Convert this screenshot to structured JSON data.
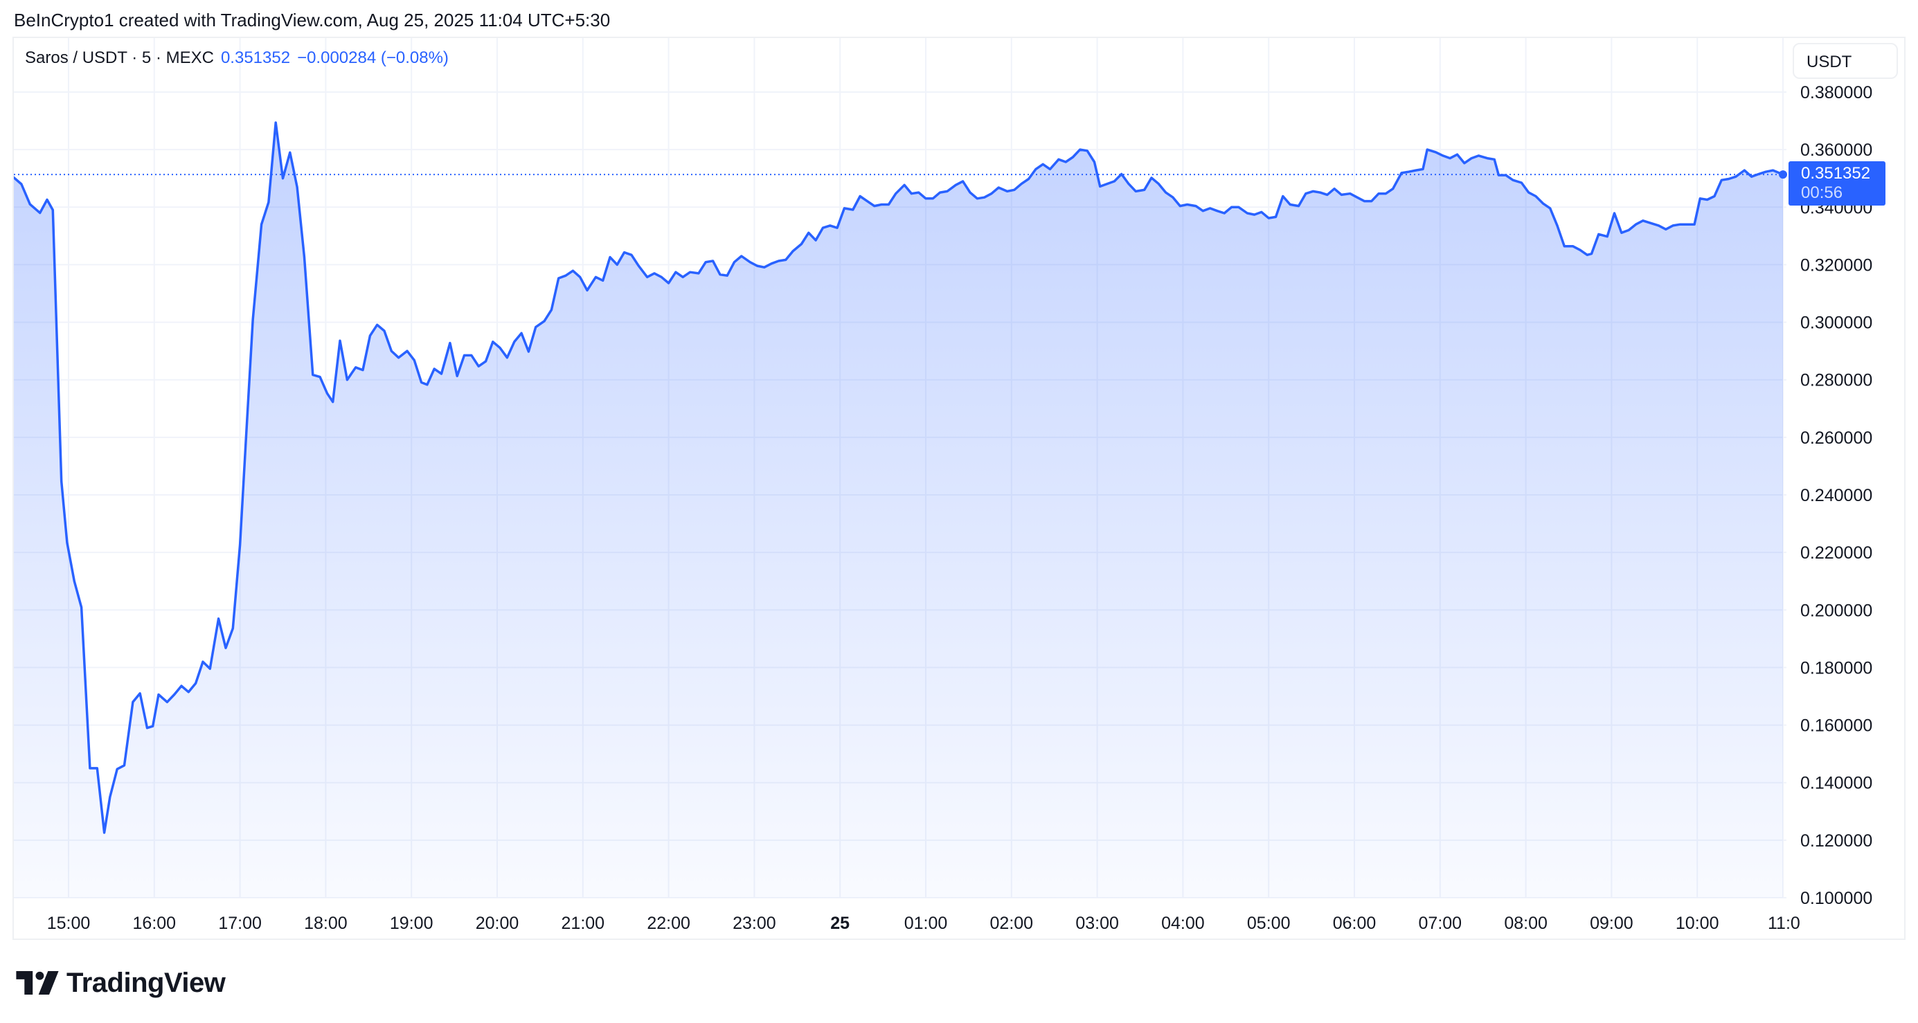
{
  "caption": "BeInCrypto1 created with TradingView.com, Aug 25, 2025 11:04 UTC+5:30",
  "legend": {
    "symbol": "Saros / USDT · 5 · MEXC",
    "last": "0.351352",
    "change": "−0.000284 (−0.08%)"
  },
  "price_scale": {
    "currency_button": "USDT",
    "last_price_label": "0.351352",
    "countdown": "00:56"
  },
  "logo": "TradingView",
  "colors": {
    "line": "#2962ff",
    "grid": "#f0f3fa",
    "price_tag": "#2962ff"
  },
  "chart_data": {
    "type": "area",
    "title": "",
    "xlabel": "",
    "ylabel": "",
    "ylim": [
      0.1,
      0.38
    ],
    "grid": true,
    "y_ticks": [
      "0.380000",
      "0.360000",
      "0.340000",
      "0.320000",
      "0.300000",
      "0.280000",
      "0.260000",
      "0.240000",
      "0.220000",
      "0.200000",
      "0.180000",
      "0.160000",
      "0.140000",
      "0.120000",
      "0.100000"
    ],
    "x_ticks": [
      "15:00",
      "16:00",
      "17:00",
      "18:00",
      "19:00",
      "20:00",
      "21:00",
      "22:00",
      "23:00",
      "25",
      "01:00",
      "02:00",
      "03:00",
      "04:00",
      "05:00",
      "06:00",
      "07:00",
      "08:00",
      "09:00",
      "10:00",
      "11:0"
    ],
    "last_value": 0.351352,
    "points": [
      [
        "14:20",
        0.351
      ],
      [
        "14:27",
        0.348
      ],
      [
        "14:33",
        0.341
      ],
      [
        "14:40",
        0.338
      ],
      [
        "14:45",
        0.3426
      ],
      [
        "14:49",
        0.339
      ],
      [
        "14:55",
        0.2447
      ],
      [
        "14:59",
        0.2234
      ],
      [
        "15:04",
        0.21
      ],
      [
        "15:09",
        0.2009
      ],
      [
        "15:15",
        0.145
      ],
      [
        "15:20",
        0.145
      ],
      [
        "15:25",
        0.1226
      ],
      [
        "15:29",
        0.135
      ],
      [
        "15:34",
        0.1447
      ],
      [
        "15:39",
        0.146
      ],
      [
        "15:45",
        0.168
      ],
      [
        "15:50",
        0.171
      ],
      [
        "15:55",
        0.159
      ],
      [
        "15:59",
        0.1596
      ],
      [
        "16:03",
        0.1706
      ],
      [
        "16:09",
        0.168
      ],
      [
        "16:14",
        0.1706
      ],
      [
        "16:19",
        0.1736
      ],
      [
        "16:24",
        0.1715
      ],
      [
        "16:29",
        0.1745
      ],
      [
        "16:34",
        0.182
      ],
      [
        "16:39",
        0.1796
      ],
      [
        "16:45",
        0.197
      ],
      [
        "16:50",
        0.1868
      ],
      [
        "16:55",
        0.1936
      ],
      [
        "17:00",
        0.2226
      ],
      [
        "17:04",
        0.258
      ],
      [
        "17:09",
        0.301
      ],
      [
        "17:15",
        0.334
      ],
      [
        "17:20",
        0.3417
      ],
      [
        "17:25",
        0.3694
      ],
      [
        "17:30",
        0.35
      ],
      [
        "17:35",
        0.359
      ],
      [
        "17:40",
        0.347
      ],
      [
        "17:45",
        0.3226
      ],
      [
        "17:51",
        0.2817
      ],
      [
        "17:56",
        0.281
      ],
      [
        "18:01",
        0.2753
      ],
      [
        "18:05",
        0.2723
      ],
      [
        "18:10",
        0.2936
      ],
      [
        "18:15",
        0.28
      ],
      [
        "18:21",
        0.2843
      ],
      [
        "18:26",
        0.2834
      ],
      [
        "18:31",
        0.2953
      ],
      [
        "18:36",
        0.2991
      ],
      [
        "18:41",
        0.297
      ],
      [
        "18:46",
        0.29
      ],
      [
        "18:51",
        0.2877
      ],
      [
        "18:57",
        0.29
      ],
      [
        "19:02",
        0.2868
      ],
      [
        "19:07",
        0.2791
      ],
      [
        "19:11",
        0.2783
      ],
      [
        "19:16",
        0.2838
      ],
      [
        "19:21",
        0.2821
      ],
      [
        "19:27",
        0.2928
      ],
      [
        "19:32",
        0.2813
      ],
      [
        "19:37",
        0.2885
      ],
      [
        "19:42",
        0.2885
      ],
      [
        "19:47",
        0.2847
      ],
      [
        "19:52",
        0.2864
      ],
      [
        "19:57",
        0.2932
      ],
      [
        "20:02",
        0.2911
      ],
      [
        "20:07",
        0.2877
      ],
      [
        "20:12",
        0.2932
      ],
      [
        "20:17",
        0.2962
      ],
      [
        "20:22",
        0.2898
      ],
      [
        "20:27",
        0.2983
      ],
      [
        "20:33",
        0.3004
      ],
      [
        "20:38",
        0.3043
      ],
      [
        "20:43",
        0.3153
      ],
      [
        "20:48",
        0.3162
      ],
      [
        "20:53",
        0.3179
      ],
      [
        "20:58",
        0.3157
      ],
      [
        "21:03",
        0.3111
      ],
      [
        "21:09",
        0.3157
      ],
      [
        "21:14",
        0.3145
      ],
      [
        "21:19",
        0.3226
      ],
      [
        "21:24",
        0.32
      ],
      [
        "21:29",
        0.3243
      ],
      [
        "21:34",
        0.3234
      ],
      [
        "21:39",
        0.3196
      ],
      [
        "21:45",
        0.3157
      ],
      [
        "21:50",
        0.317
      ],
      [
        "21:55",
        0.3157
      ],
      [
        "22:00",
        0.3136
      ],
      [
        "22:05",
        0.3174
      ],
      [
        "22:10",
        0.3157
      ],
      [
        "22:15",
        0.3174
      ],
      [
        "22:21",
        0.317
      ],
      [
        "22:26",
        0.3209
      ],
      [
        "22:31",
        0.3213
      ],
      [
        "22:36",
        0.3166
      ],
      [
        "22:41",
        0.3162
      ],
      [
        "22:46",
        0.3209
      ],
      [
        "22:51",
        0.323
      ],
      [
        "22:57",
        0.3209
      ],
      [
        "23:02",
        0.3196
      ],
      [
        "23:07",
        0.3191
      ],
      [
        "23:12",
        0.3204
      ],
      [
        "23:17",
        0.3213
      ],
      [
        "23:22",
        0.3217
      ],
      [
        "23:27",
        0.3247
      ],
      [
        "23:33",
        0.3272
      ],
      [
        "23:38",
        0.3311
      ],
      [
        "23:43",
        0.3285
      ],
      [
        "23:48",
        0.3328
      ],
      [
        "23:53",
        0.3336
      ],
      [
        "23:58",
        0.3328
      ],
      [
        "00:03",
        0.3396
      ],
      [
        "00:09",
        0.3391
      ],
      [
        "00:14",
        0.3438
      ],
      [
        "00:19",
        0.3421
      ],
      [
        "00:24",
        0.3404
      ],
      [
        "00:29",
        0.3409
      ],
      [
        "00:34",
        0.3409
      ],
      [
        "00:39",
        0.3447
      ],
      [
        "00:45",
        0.3477
      ],
      [
        "00:50",
        0.3447
      ],
      [
        "00:55",
        0.3451
      ],
      [
        "01:00",
        0.343
      ],
      [
        "01:05",
        0.343
      ],
      [
        "01:10",
        0.3451
      ],
      [
        "01:15",
        0.3455
      ],
      [
        "01:21",
        0.3477
      ],
      [
        "01:26",
        0.349
      ],
      [
        "01:31",
        0.3451
      ],
      [
        "01:36",
        0.343
      ],
      [
        "01:41",
        0.3434
      ],
      [
        "01:46",
        0.3447
      ],
      [
        "01:51",
        0.3468
      ],
      [
        "01:57",
        0.3455
      ],
      [
        "02:02",
        0.346
      ],
      [
        "02:07",
        0.3481
      ],
      [
        "02:12",
        0.3498
      ],
      [
        "02:17",
        0.3532
      ],
      [
        "02:22",
        0.3549
      ],
      [
        "02:27",
        0.3532
      ],
      [
        "02:33",
        0.3566
      ],
      [
        "02:38",
        0.3557
      ],
      [
        "02:43",
        0.3574
      ],
      [
        "02:48",
        0.36
      ],
      [
        "02:53",
        0.3596
      ],
      [
        "02:58",
        0.3557
      ],
      [
        "03:02",
        0.3472
      ],
      [
        "03:07",
        0.3481
      ],
      [
        "03:12",
        0.349
      ],
      [
        "03:17",
        0.3515
      ],
      [
        "03:22",
        0.3481
      ],
      [
        "03:27",
        0.3455
      ],
      [
        "03:33",
        0.346
      ],
      [
        "03:38",
        0.3502
      ],
      [
        "03:43",
        0.3481
      ],
      [
        "03:48",
        0.3451
      ],
      [
        "03:53",
        0.3434
      ],
      [
        "03:58",
        0.3404
      ],
      [
        "04:03",
        0.3409
      ],
      [
        "04:09",
        0.3404
      ],
      [
        "04:14",
        0.3387
      ],
      [
        "04:19",
        0.3396
      ],
      [
        "04:24",
        0.3387
      ],
      [
        "04:29",
        0.3379
      ],
      [
        "04:34",
        0.34
      ],
      [
        "04:39",
        0.34
      ],
      [
        "04:45",
        0.3379
      ],
      [
        "04:50",
        0.3374
      ],
      [
        "04:55",
        0.3383
      ],
      [
        "05:00",
        0.3362
      ],
      [
        "05:05",
        0.3366
      ],
      [
        "05:10",
        0.3438
      ],
      [
        "05:15",
        0.3409
      ],
      [
        "05:21",
        0.3404
      ],
      [
        "05:26",
        0.3447
      ],
      [
        "05:31",
        0.3455
      ],
      [
        "05:36",
        0.3451
      ],
      [
        "05:41",
        0.3443
      ],
      [
        "05:46",
        0.3464
      ],
      [
        "05:51",
        0.3443
      ],
      [
        "05:57",
        0.3447
      ],
      [
        "06:02",
        0.3434
      ],
      [
        "06:07",
        0.3421
      ],
      [
        "06:12",
        0.3421
      ],
      [
        "06:17",
        0.3447
      ],
      [
        "06:22",
        0.3447
      ],
      [
        "06:27",
        0.3464
      ],
      [
        "06:33",
        0.3519
      ],
      [
        "06:38",
        0.3523
      ],
      [
        "06:43",
        0.3528
      ],
      [
        "06:48",
        0.3532
      ],
      [
        "06:51",
        0.36
      ],
      [
        "06:57",
        0.3591
      ],
      [
        "07:02",
        0.3579
      ],
      [
        "07:07",
        0.357
      ],
      [
        "07:12",
        0.3583
      ],
      [
        "07:17",
        0.3553
      ],
      [
        "07:22",
        0.357
      ],
      [
        "07:27",
        0.3579
      ],
      [
        "07:33",
        0.357
      ],
      [
        "07:38",
        0.3566
      ],
      [
        "07:41",
        0.3511
      ],
      [
        "07:46",
        0.3511
      ],
      [
        "07:51",
        0.3494
      ],
      [
        "07:57",
        0.3485
      ],
      [
        "08:02",
        0.3451
      ],
      [
        "08:07",
        0.3438
      ],
      [
        "08:12",
        0.3413
      ],
      [
        "08:17",
        0.3396
      ],
      [
        "08:22",
        0.3336
      ],
      [
        "08:27",
        0.3264
      ],
      [
        "08:33",
        0.3264
      ],
      [
        "08:38",
        0.3251
      ],
      [
        "08:43",
        0.3234
      ],
      [
        "08:46",
        0.3238
      ],
      [
        "08:51",
        0.3306
      ],
      [
        "08:57",
        0.3298
      ],
      [
        "09:02",
        0.3379
      ],
      [
        "09:07",
        0.3311
      ],
      [
        "09:12",
        0.332
      ],
      [
        "09:17",
        0.334
      ],
      [
        "09:22",
        0.3353
      ],
      [
        "09:27",
        0.3345
      ],
      [
        "09:33",
        0.3336
      ],
      [
        "09:38",
        0.3323
      ],
      [
        "09:43",
        0.3336
      ],
      [
        "09:48",
        0.334
      ],
      [
        "09:53",
        0.334
      ],
      [
        "09:58",
        0.334
      ],
      [
        "10:02",
        0.343
      ],
      [
        "10:07",
        0.3426
      ],
      [
        "10:12",
        0.3438
      ],
      [
        "10:17",
        0.3494
      ],
      [
        "10:22",
        0.3498
      ],
      [
        "10:27",
        0.3506
      ],
      [
        "10:33",
        0.3528
      ],
      [
        "10:38",
        0.3506
      ],
      [
        "10:43",
        0.3515
      ],
      [
        "10:48",
        0.3523
      ],
      [
        "10:53",
        0.3528
      ],
      [
        "11:00",
        0.351352
      ]
    ]
  }
}
